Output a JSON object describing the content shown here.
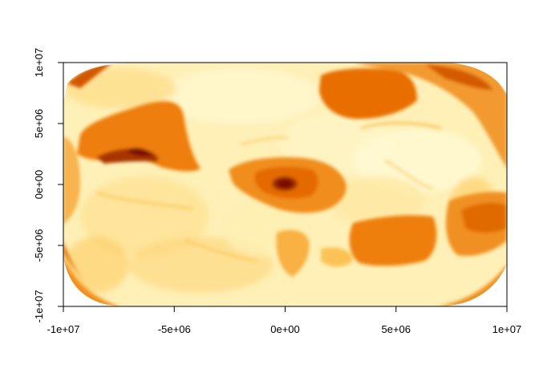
{
  "chart_data": {
    "type": "heatmap",
    "title": "",
    "xlabel": "",
    "ylabel": "",
    "xlim": [
      -10000000,
      10000000
    ],
    "ylim": [
      -10000000,
      10000000
    ],
    "x_ticks": [
      {
        "value": -10000000,
        "label": "-1e+07"
      },
      {
        "value": -5000000,
        "label": "-5e+06"
      },
      {
        "value": 0,
        "label": "0e+00"
      },
      {
        "value": 5000000,
        "label": "5e+06"
      },
      {
        "value": 10000000,
        "label": "1e+07"
      }
    ],
    "y_ticks": [
      {
        "value": -10000000,
        "label": "-1e+07"
      },
      {
        "value": -5000000,
        "label": "-5e+06"
      },
      {
        "value": 0,
        "label": "0e+00"
      },
      {
        "value": 5000000,
        "label": "5e+06"
      },
      {
        "value": 10000000,
        "label": "1e+07"
      }
    ],
    "palette": [
      "#FFFFCC",
      "#FEEBA5",
      "#FED775",
      "#FDB24A",
      "#F58B14",
      "#E06C00",
      "#C84E00",
      "#A63000",
      "#7A0403"
    ],
    "grid": false,
    "legend": "none"
  }
}
